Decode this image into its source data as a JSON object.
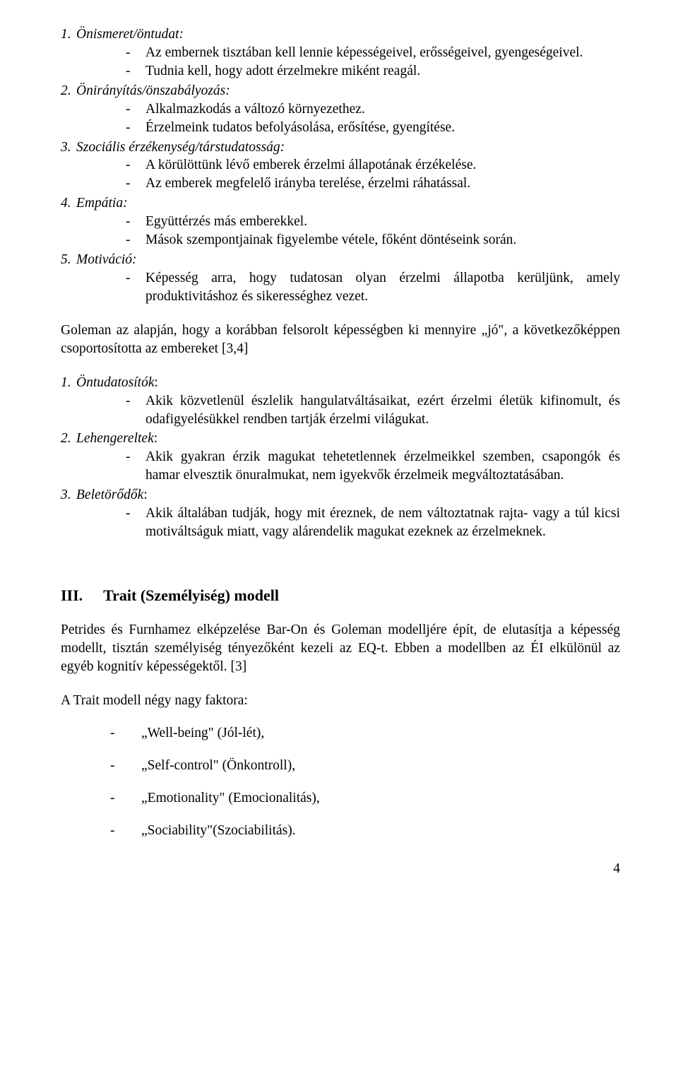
{
  "skills": [
    {
      "num": "1.",
      "title": "Önismeret/öntudat:",
      "items": [
        "Az embernek tisztában kell lennie képességeivel, erősségeivel, gyengeségeivel.",
        "Tudnia kell, hogy adott érzelmekre miként reagál."
      ]
    },
    {
      "num": "2.",
      "title": "Önirányítás/önszabályozás:",
      "items": [
        "Alkalmazkodás a változó környezethez.",
        "Érzelmeink tudatos befolyásolása, erősítése, gyengítése."
      ]
    },
    {
      "num": "3.",
      "title": "Szociális érzékenység/társtudatosság:",
      "items": [
        "A körülöttünk lévő emberek érzelmi állapotának érzékelése.",
        "Az emberek megfelelő irányba terelése, érzelmi ráhatással."
      ]
    },
    {
      "num": "4.",
      "title": "Empátia:",
      "items": [
        "Együttérzés más emberekkel.",
        "Mások szempontjainak figyelembe vétele, főként döntéseink során."
      ]
    },
    {
      "num": "5.",
      "title": "Motiváció:",
      "items": [
        "Képesség arra, hogy tudatosan olyan érzelmi állapotba kerüljünk, amely produktivitáshoz és sikerességhez vezet."
      ]
    }
  ],
  "para1": "Goleman az alapján, hogy a korábban felsorolt képességben ki mennyire „jó\", a következőképpen csoportosította az embereket [3,4]",
  "groups": [
    {
      "num": "1.",
      "title": "Öntudatosítók",
      "items": [
        "Akik közvetlenül észlelik hangulatváltásaikat, ezért érzelmi életük kifinomult, és odafigyelésükkel rendben tartják érzelmi világukat."
      ]
    },
    {
      "num": "2.",
      "title": "Lehengereltek",
      "items": [
        "Akik gyakran érzik magukat tehetetlennek érzelmeikkel szemben, csapongók és hamar elvesztik önuralmukat, nem igyekvők érzelmeik megváltoztatásában."
      ]
    },
    {
      "num": "3.",
      "title": "Beletörődők",
      "items": [
        "Akik általában tudják, hogy mit éreznek, de nem változtatnak rajta- vagy a túl kicsi motiváltságuk miatt, vagy alárendelik magukat ezeknek az érzelmeknek."
      ]
    }
  ],
  "section": {
    "roman": "III.",
    "title": "Trait (Személyiség) modell"
  },
  "para2": "Petrides és Furnhamez elképzelése Bar-On és Goleman modelljére épít, de elutasítja a képesség modellt, tisztán személyiség tényezőként kezeli az EQ-t. Ebben a modellben az ÉI elkülönül az egyéb kognitív képességektől. [3]",
  "para3": "A Trait modell négy nagy faktora:",
  "factors": [
    "„Well-being\" (Jól-lét),",
    "„Self-control\" (Önkontroll),",
    "„Emotionality\" (Emocionalitás),",
    "„Sociability\"(Szociabilitás)."
  ],
  "page_num": "4"
}
